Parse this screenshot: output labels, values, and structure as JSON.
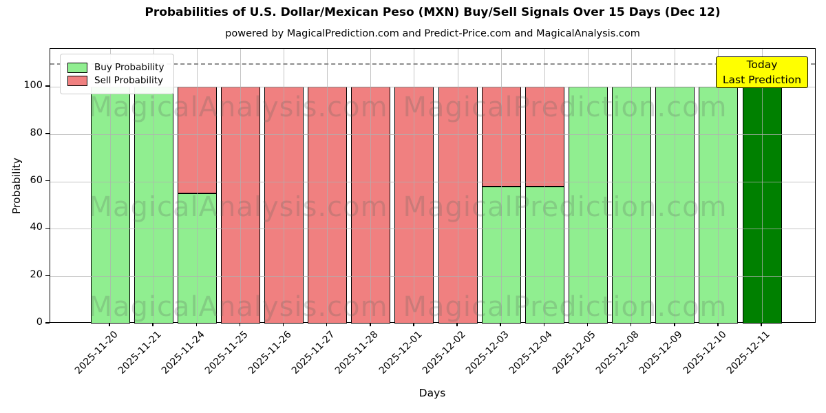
{
  "title": "Probabilities of U.S. Dollar/Mexican Peso (MXN) Buy/Sell Signals Over 15 Days (Dec 12)",
  "subtitle": "powered by MagicalPrediction.com and Predict-Price.com and MagicalAnalysis.com",
  "legend": {
    "items": [
      {
        "label": "Buy Probability",
        "color": "#90EE90"
      },
      {
        "label": "Sell Probability",
        "color": "#F08080"
      }
    ]
  },
  "annotation": {
    "lines": {
      "0": "Today",
      "1": "Last Prediction"
    },
    "bg_color": "#FFFF00"
  },
  "watermarks": {
    "left_text": "MagicalAnalysis.com",
    "right_text": "MagicalPrediction.com"
  },
  "axes": {
    "xlabel": "Days",
    "ylabel": "Probability",
    "yticks": [
      0,
      20,
      40,
      60,
      80,
      100
    ],
    "ylim": [
      0,
      116
    ],
    "dashed_line_y": 110,
    "grid_color": "#b0b0b0",
    "dashed_line_color": "#8c8c8c"
  },
  "chart_data": {
    "type": "bar",
    "stacked": true,
    "title": "Probabilities of U.S. Dollar/Mexican Peso (MXN) Buy/Sell Signals Over 15 Days (Dec 12)",
    "xlabel": "Days",
    "ylabel": "Probability",
    "ylim": [
      0,
      116
    ],
    "grid": true,
    "legend_position": "upper left",
    "categories": [
      "2025-11-20",
      "2025-11-21",
      "2025-11-24",
      "2025-11-25",
      "2025-11-26",
      "2025-11-27",
      "2025-11-28",
      "2025-12-01",
      "2025-12-02",
      "2025-12-03",
      "2025-12-04",
      "2025-12-05",
      "2025-12-08",
      "2025-12-09",
      "2025-12-10",
      "2025-12-11"
    ],
    "series": [
      {
        "name": "Buy Probability",
        "color": "#90EE90",
        "values": [
          100,
          100,
          55,
          0,
          0,
          0,
          0,
          0,
          0,
          58,
          58,
          100,
          100,
          100,
          100,
          100
        ]
      },
      {
        "name": "Sell Probability",
        "color": "#F08080",
        "values": [
          0,
          0,
          45,
          100,
          100,
          100,
          100,
          100,
          100,
          42,
          42,
          0,
          0,
          0,
          0,
          0
        ]
      }
    ],
    "today_bar": {
      "category": "2025-12-11",
      "index": 15,
      "color": "#008000",
      "label": "Today Last Prediction"
    }
  }
}
